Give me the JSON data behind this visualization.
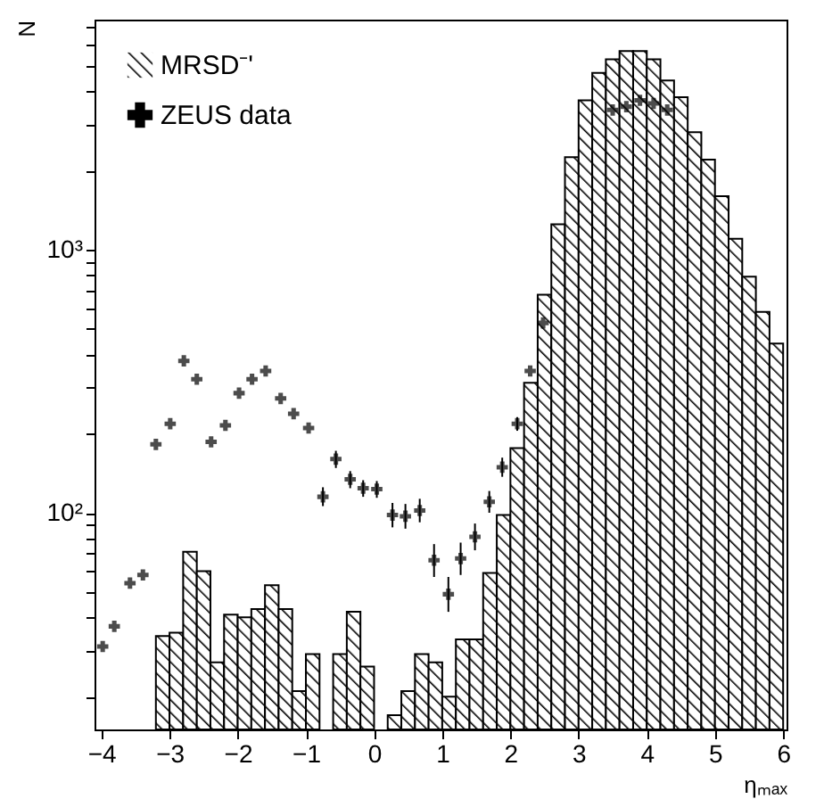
{
  "chart_data": {
    "type": "histogram",
    "xlabel": "ηₘₐₓ",
    "ylabel": "N",
    "bins": [
      -3.2,
      -3.0,
      -2.8,
      -2.6,
      -2.4,
      -2.2,
      -2.0,
      -1.8,
      -1.6,
      -1.4,
      -1.2,
      -1.0,
      -0.8,
      -0.6,
      -0.4,
      -0.2,
      0,
      0.2,
      0.4,
      0.6,
      0.8,
      1.0,
      1.2,
      1.4,
      1.6,
      1.8,
      2.0,
      2.2,
      2.4,
      2.6,
      2.8,
      3.0,
      3.2,
      3.4,
      3.6,
      3.8,
      4.0,
      4.2,
      4.4,
      4.6,
      4.8,
      5.0,
      5.2,
      5.4,
      5.6,
      5.8,
      6.0
    ],
    "series": [
      {
        "name": "MRSD⁻'",
        "color": "#000000",
        "values": [
          34,
          35,
          71,
          60,
          27,
          41,
          40,
          43,
          53,
          43,
          21,
          29,
          null,
          29,
          42,
          26,
          null,
          17,
          21,
          29,
          27,
          20,
          33,
          33,
          59,
          98,
          176,
          312,
          675,
          1250,
          2250,
          3700,
          4700,
          5300,
          5700,
          5700,
          5300,
          4400,
          3800,
          2800,
          2200,
          1600,
          1100,
          790,
          580,
          440
        ]
      },
      {
        "name": "ZEUS data",
        "type": "scatter",
        "color": "#000000",
        "x": [
          -3.98,
          -3.81,
          -3.58,
          -3.39,
          -3.2,
          -2.99,
          -2.79,
          -2.6,
          -2.39,
          -2.18,
          -1.98,
          -1.79,
          -1.59,
          -1.37,
          -1.18,
          -0.96,
          -0.75,
          -0.56,
          -0.35,
          -0.16,
          0.04,
          0.27,
          0.46,
          0.67,
          0.88,
          1.09,
          1.27,
          1.48,
          1.69,
          1.88,
          2.1,
          2.29,
          2.48,
          3.5,
          3.7,
          3.9,
          4.1,
          4.3
        ],
        "values": [
          31,
          37,
          54,
          58,
          182,
          218,
          378,
          322,
          186,
          215,
          285,
          322,
          346,
          272,
          238,
          210,
          115,
          160,
          134,
          124,
          123,
          98,
          97,
          102,
          66,
          49,
          67,
          81,
          110,
          149,
          218,
          346,
          527,
          3400,
          3500,
          3700,
          3600,
          3400
        ],
        "errors": [
          null,
          null,
          null,
          null,
          null,
          null,
          null,
          null,
          null,
          null,
          null,
          null,
          null,
          null,
          null,
          null,
          [
            106,
            125
          ],
          [
            148,
            172
          ],
          [
            124,
            144
          ],
          [
            115,
            133
          ],
          [
            114,
            132
          ],
          [
            88,
            109
          ],
          [
            87,
            108
          ],
          [
            92,
            113
          ],
          [
            57,
            76
          ],
          [
            42,
            57
          ],
          [
            58,
            77
          ],
          [
            72,
            91
          ],
          [
            100,
            121
          ],
          [
            137,
            162
          ],
          [
            205,
            231
          ],
          null,
          null,
          null,
          null,
          null,
          null,
          null
        ]
      }
    ],
    "log": "y",
    "xlim": [
      -4.1,
      6.05
    ],
    "ylim": [
      15,
      7500
    ],
    "xticks": [
      -4,
      -3,
      -2,
      -1,
      0,
      1,
      2,
      3,
      4,
      5,
      6
    ],
    "yticks": [
      {
        "value": 20,
        "label": null
      },
      {
        "value": 30,
        "label": null
      },
      {
        "value": 40,
        "label": null
      },
      {
        "value": 50,
        "label": null
      },
      {
        "value": 60,
        "label": null
      },
      {
        "value": 70,
        "label": null
      },
      {
        "value": 80,
        "label": null
      },
      {
        "value": 90,
        "label": null
      },
      {
        "value": 100,
        "label": "10²"
      },
      {
        "value": 200,
        "label": null
      },
      {
        "value": 300,
        "label": null
      },
      {
        "value": 400,
        "label": null
      },
      {
        "value": 500,
        "label": null
      },
      {
        "value": 600,
        "label": null
      },
      {
        "value": 700,
        "label": null
      },
      {
        "value": 800,
        "label": null
      },
      {
        "value": 900,
        "label": null
      },
      {
        "value": 1000,
        "label": "10³"
      },
      {
        "value": 2000,
        "label": null
      },
      {
        "value": 3000,
        "label": null
      },
      {
        "value": 4000,
        "label": null
      },
      {
        "value": 5000,
        "label": null
      },
      {
        "value": 6000,
        "label": null
      },
      {
        "value": 7000,
        "label": null
      }
    ],
    "grid": false,
    "legend": "top left",
    "marker": "cross"
  }
}
